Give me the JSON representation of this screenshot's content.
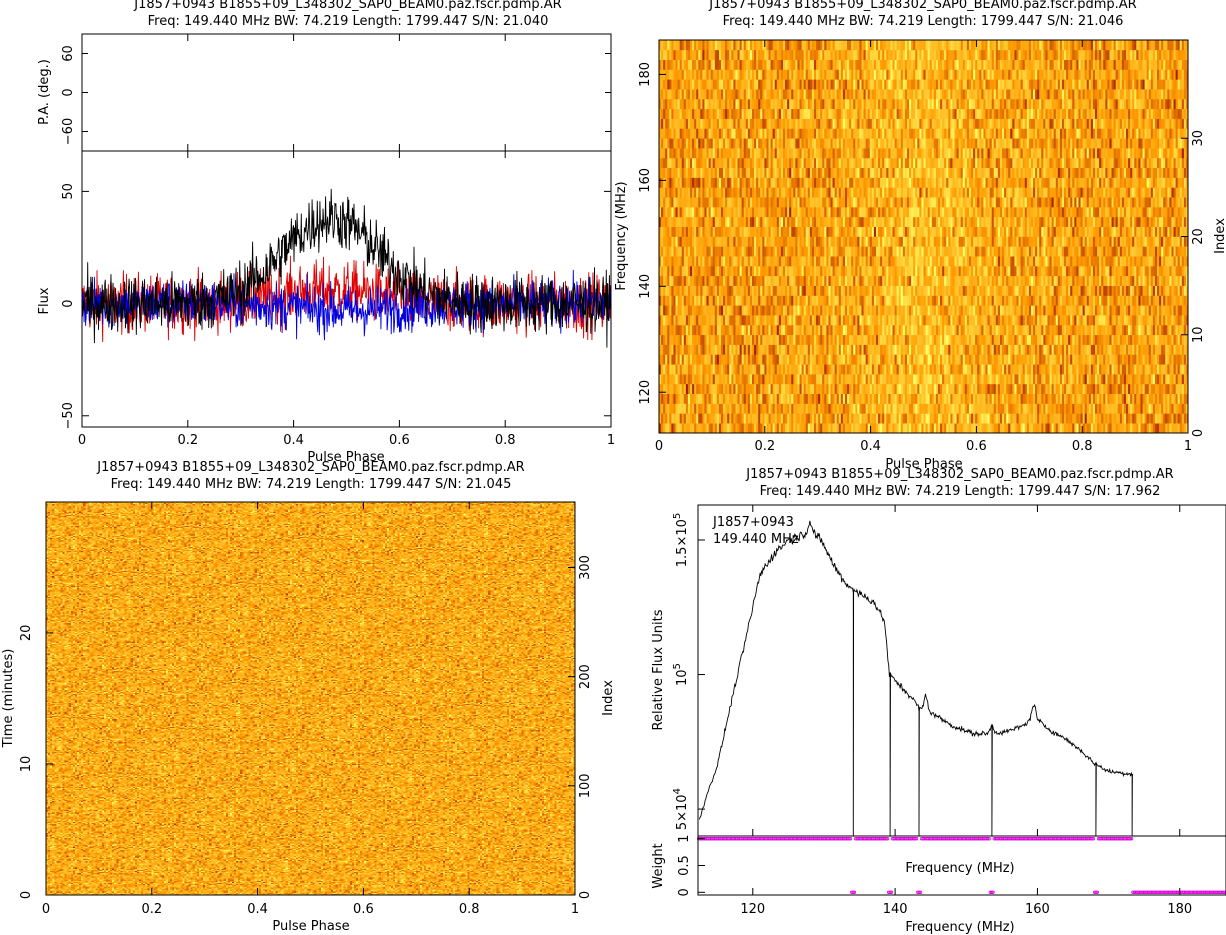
{
  "figure": {
    "background": "#ffffff",
    "colors": {
      "axes": "#000000",
      "stokes_I": "#000000",
      "stokes_L": "#e00000",
      "stokes_V": "#0000e0",
      "weight_marker": "#e000e0",
      "heat_low": "#8b0000",
      "heat_mid": "#ff9900",
      "heat_high": "#ffff66"
    }
  },
  "chart_data": [
    {
      "id": "pol_profile",
      "type": "line",
      "title": "J1857+0943 B1855+09_L348302_SAP0_BEAM0.paz.fscr.pdmp.AR",
      "subtitle": "Freq: 149.440 MHz BW: 74.219 Length: 1799.447 S/N: 21.040",
      "xlabel": "Pulse Phase",
      "xlim": [
        0,
        1
      ],
      "xticks": [
        "0",
        "0.2",
        "0.4",
        "0.6",
        "0.8",
        "1"
      ],
      "pa_panel": {
        "ylabel": "P.A. (deg.)",
        "ylim": [
          -90,
          90
        ],
        "yticks": [
          "−60",
          "0",
          "60"
        ]
      },
      "flux_panel": {
        "ylabel": "Flux",
        "ylim": [
          -55,
          68
        ],
        "yticks": [
          "−50",
          "0",
          "50"
        ]
      },
      "series": [
        {
          "key": "I",
          "noise_sigma": 11,
          "peak": 38,
          "peak_center": 0.47,
          "peak_width": 0.09
        },
        {
          "key": "L",
          "noise_sigma": 11,
          "peak": 6,
          "peak_center": 0.47,
          "peak_width": 0.1
        },
        {
          "key": "V",
          "noise_sigma": 9,
          "peak": -3,
          "peak_center": 0.5,
          "peak_width": 0.1
        }
      ],
      "nbins": 1024
    },
    {
      "id": "freq_phase",
      "type": "heatmap",
      "title": "J1857+0943 B1855+09_L348302_SAP0_BEAM0.paz.fscr.pdmp.AR",
      "subtitle": "Freq: 149.440 MHz BW: 74.219 Length: 1799.447 S/N: 21.046",
      "xlabel": "Pulse Phase",
      "ylabel": "Frequency (MHz)",
      "y2label": "Index",
      "xlim": [
        0,
        1
      ],
      "ylim": [
        112.3,
        186.5
      ],
      "y2lim": [
        0,
        40
      ],
      "xticks": [
        "0",
        "0.2",
        "0.4",
        "0.6",
        "0.8",
        "1"
      ],
      "yticks": [
        "120",
        "140",
        "160",
        "180"
      ],
      "y2ticks": [
        "0",
        "10",
        "20",
        "30"
      ],
      "channels": 40,
      "phase_bins": 256
    },
    {
      "id": "time_phase",
      "type": "heatmap",
      "title": "J1857+0943 B1855+09_L348302_SAP0_BEAM0.paz.fscr.pdmp.AR",
      "subtitle": "Freq: 149.440 MHz BW: 74.219 Length: 1799.447 S/N: 21.045",
      "xlabel": "Pulse Phase",
      "ylabel": "Time (minutes)",
      "y2label": "Index",
      "xlim": [
        0,
        1
      ],
      "ylim": [
        0,
        29.99
      ],
      "y2lim": [
        0,
        360
      ],
      "xticks": [
        "0",
        "0.2",
        "0.4",
        "0.6",
        "0.8",
        "1"
      ],
      "yticks": [
        "0",
        "10",
        "20"
      ],
      "y2ticks": [
        "0",
        "100",
        "200",
        "300"
      ],
      "subints": 360,
      "phase_bins": 256
    },
    {
      "id": "bandpass",
      "type": "line",
      "title": "J1857+0943 B1855+09_L348302_SAP0_BEAM0.paz.fscr.pdmp.AR",
      "subtitle": "Freq: 149.440 MHz BW: 74.219 Length: 1799.447 S/N: 17.962",
      "annotation": [
        "J1857+0943",
        "149.440 MHz"
      ],
      "xlabel": "Frequency (MHz)",
      "ylabel": "Relative Flux Units",
      "xlim": [
        112.3,
        186.5
      ],
      "ylim": [
        40000,
        163000
      ],
      "xticks": [
        "120",
        "140",
        "160",
        "180"
      ],
      "yticks": [
        {
          "value": 50000,
          "mant": "5×10",
          "exp": "4"
        },
        {
          "value": 100000,
          "mant": "10",
          "exp": "5"
        },
        {
          "value": 150000,
          "mant": "1.5×10",
          "exp": "5"
        }
      ],
      "envelope": [
        [
          112.5,
          46000
        ],
        [
          113.5,
          55000
        ],
        [
          115,
          66000
        ],
        [
          117,
          90000
        ],
        [
          119,
          113000
        ],
        [
          121,
          137000
        ],
        [
          123,
          145000
        ],
        [
          125,
          150000
        ],
        [
          127,
          152000
        ],
        [
          128.5,
          153000
        ],
        [
          130,
          148000
        ],
        [
          131.5,
          140000
        ],
        [
          133,
          134000
        ],
        [
          135,
          130000
        ],
        [
          137,
          127000
        ],
        [
          138.5,
          120000
        ],
        [
          139.2,
          100000
        ],
        [
          141,
          95000
        ],
        [
          142.5,
          91000
        ],
        [
          143.5,
          87000
        ],
        [
          145,
          86000
        ],
        [
          148,
          81000
        ],
        [
          151,
          78000
        ],
        [
          153.5,
          78000
        ],
        [
          156,
          79000
        ],
        [
          158,
          81000
        ],
        [
          159.4,
          84000
        ],
        [
          160.5,
          82000
        ],
        [
          162,
          79000
        ],
        [
          164,
          76000
        ],
        [
          166,
          72000
        ],
        [
          168,
          67000
        ],
        [
          170,
          64000
        ],
        [
          173.2,
          63000
        ]
      ],
      "spikes": [
        {
          "x": 134.1,
          "y": 40000
        },
        {
          "x": 139.3,
          "y": 40000
        },
        {
          "x": 143.4,
          "y": 40000
        },
        {
          "x": 153.6,
          "y": 40000
        },
        {
          "x": 168.2,
          "y": 40000
        },
        {
          "x": 173.3,
          "y": 40000
        }
      ],
      "peaks": [
        {
          "x": 128.0,
          "y": 157000
        },
        {
          "x": 144.3,
          "y": 92000
        },
        {
          "x": 153.6,
          "y": 81000
        },
        {
          "x": 159.5,
          "y": 89000
        }
      ],
      "end_freq": 173.4,
      "weight_panel": {
        "ylabel": "Weight",
        "xlabel": "Frequency (MHz)",
        "ylim": [
          -0.05,
          1.05
        ],
        "yticks": [
          "0",
          "0.5",
          "1"
        ],
        "zero_weight_channels": [
          134.1,
          139.3,
          143.4,
          153.6,
          168.2
        ],
        "zero_weight_from": 173.4,
        "nchan": 400
      }
    }
  ]
}
